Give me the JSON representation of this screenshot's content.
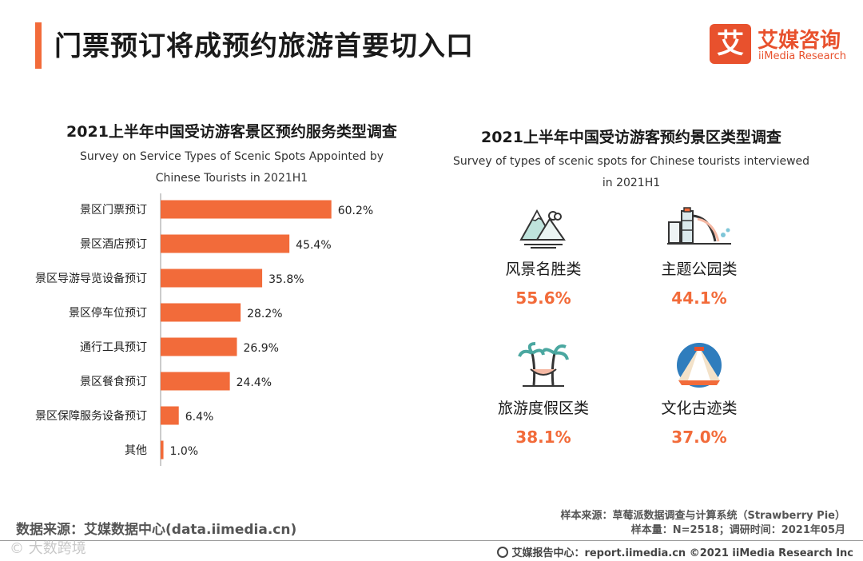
{
  "page_title": "门票预订将成预约旅游首要切入口",
  "logo": {
    "mark": "艾",
    "cn": "艾媒咨询",
    "en": "iiMedia Research"
  },
  "left_chart": {
    "title": "2021上半年中国受访游客景区预约服务类型调查",
    "subtitle_line1": "Survey on Service Types of Scenic Spots Appointed by",
    "subtitle_line2": "Chinese Tourists in  2021H1"
  },
  "right_panel": {
    "title": "2021上半年中国受访游客预约景区类型调查",
    "subtitle_line1": "Survey of types of scenic spots for Chinese tourists interviewed",
    "subtitle_line2": "in 2021H1",
    "categories": [
      {
        "name": "风景名胜类",
        "value": "55.6%",
        "icon": "mountain-landscape-icon"
      },
      {
        "name": "主题公园类",
        "value": "44.1%",
        "icon": "theme-park-icon"
      },
      {
        "name": "旅游度假区类",
        "value": "38.1%",
        "icon": "palm-resort-icon"
      },
      {
        "name": "文化古迹类",
        "value": "37.0%",
        "icon": "pyramid-heritage-icon"
      }
    ]
  },
  "chart_data": {
    "type": "bar",
    "orientation": "horizontal",
    "title": "2021上半年中国受访游客景区预约服务类型调查",
    "categories": [
      "景区门票预订",
      "景区酒店预订",
      "景区导游导览设备预订",
      "景区停车位预订",
      "通行工具预订",
      "景区餐食预订",
      "景区保障服务设备预订",
      "其他"
    ],
    "values": [
      60.2,
      45.4,
      35.8,
      28.2,
      26.9,
      24.4,
      6.4,
      1.0
    ],
    "labels": [
      "60.2%",
      "45.4%",
      "35.8%",
      "28.2%",
      "26.9%",
      "24.4%",
      "6.4%",
      "1.0%"
    ],
    "unit": "%",
    "xlim": [
      0,
      100
    ],
    "bar_color": "#f26b3a"
  },
  "footer": {
    "data_source": "数据来源：艾媒数据中心(data.iimedia.cn)",
    "sample_source": "样本来源：草莓派数据调查与计算系统（Strawberry Pie）",
    "sample_size": "样本量：N=2518；调研时间：2021年05月",
    "watermark": "©  大数跨境",
    "report_center": "艾媒报告中心：report.iimedia.cn   ©2021  iiMedia Research  Inc"
  },
  "colors": {
    "accent": "#f26b3a",
    "brand": "#e8512d"
  }
}
